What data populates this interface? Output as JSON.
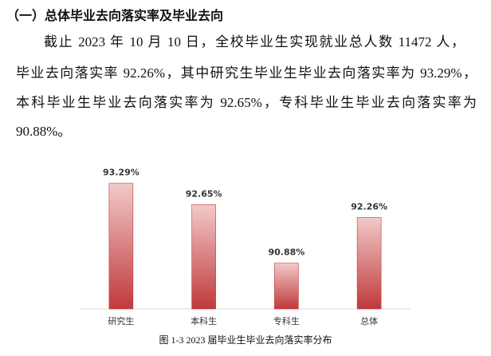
{
  "heading": "（一）总体毕业去向落实率及毕业去向",
  "paragraph": [
    "截止 2023 年 10 月 10 日，全校毕业生实现就业总人数 11472 人，",
    "毕业去向落实率 92.26%，其中研究生毕业生毕业去向落实率为 93.29%，",
    "本科毕业生毕业去向落实率为 92.65%，专科毕业生毕业去向落实率为",
    "90.88%。"
  ],
  "chart_data": {
    "type": "bar",
    "categories": [
      "研究生",
      "本科生",
      "专科生",
      "总体"
    ],
    "values": [
      93.29,
      92.65,
      90.88,
      92.26
    ],
    "value_labels": [
      "93.29%",
      "92.65%",
      "90.88%",
      "92.26%"
    ],
    "color": "#c0393b",
    "ylim": [
      89.5,
      93.5
    ]
  },
  "caption": "图 1-3 2023 届毕业生毕业去向落实率分布"
}
